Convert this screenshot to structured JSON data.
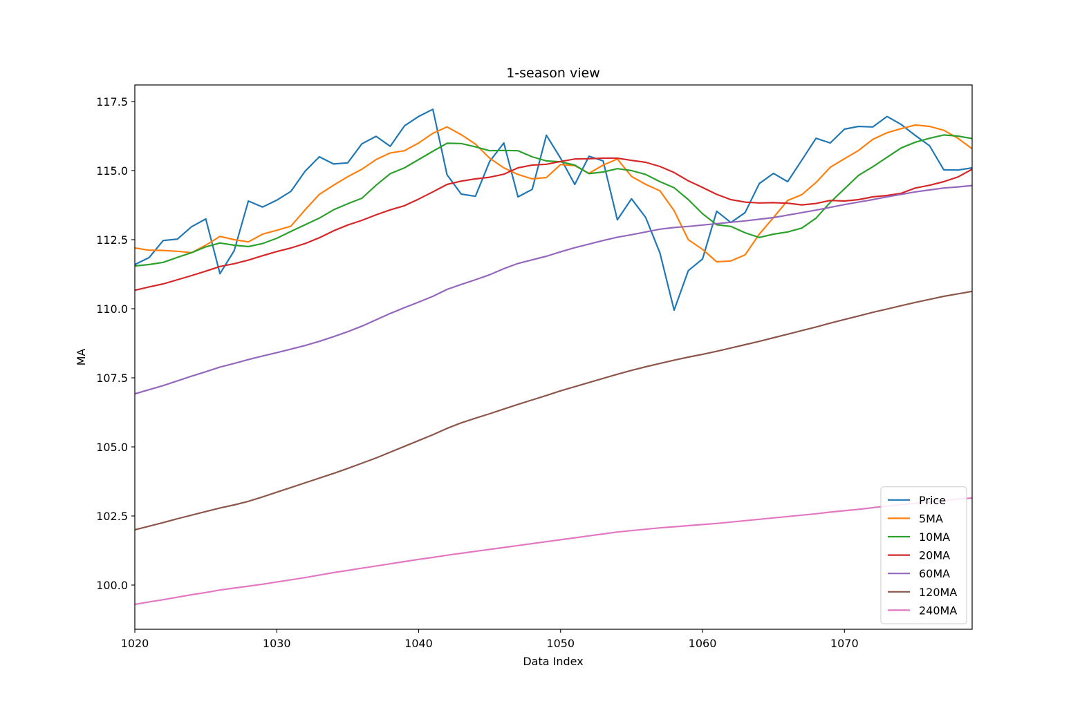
{
  "chart_data": {
    "type": "line",
    "title": "1-season view",
    "xlabel": "Data Index",
    "ylabel": "MA",
    "xlim": [
      1020,
      1079
    ],
    "ylim": [
      98.4,
      118.1
    ],
    "xticks": [
      1020,
      1030,
      1040,
      1050,
      1060,
      1070
    ],
    "yticks": [
      100.0,
      102.5,
      105.0,
      107.5,
      110.0,
      112.5,
      115.0,
      117.5
    ],
    "ytick_labels": [
      "100.0",
      "102.5",
      "105.0",
      "107.5",
      "110.0",
      "112.5",
      "115.0",
      "117.5"
    ],
    "legend_position": "lower-right",
    "grid": false,
    "x": [
      1020,
      1021,
      1022,
      1023,
      1024,
      1025,
      1026,
      1027,
      1028,
      1029,
      1030,
      1031,
      1032,
      1033,
      1034,
      1035,
      1036,
      1037,
      1038,
      1039,
      1040,
      1041,
      1042,
      1043,
      1044,
      1045,
      1046,
      1047,
      1048,
      1049,
      1050,
      1051,
      1052,
      1053,
      1054,
      1055,
      1056,
      1057,
      1058,
      1059,
      1060,
      1061,
      1062,
      1063,
      1064,
      1065,
      1066,
      1067,
      1068,
      1069,
      1070,
      1071,
      1072,
      1073,
      1074,
      1075,
      1076,
      1077,
      1078,
      1079
    ],
    "series": [
      {
        "name": "Price",
        "color": "#1f77b4",
        "values": [
          111.6,
          111.85,
          112.47,
          112.52,
          112.97,
          113.25,
          111.27,
          112.1,
          113.9,
          113.68,
          113.93,
          114.25,
          114.98,
          115.5,
          115.24,
          115.28,
          115.97,
          116.24,
          115.88,
          116.62,
          116.96,
          117.22,
          114.85,
          114.15,
          114.07,
          115.33,
          116.0,
          114.05,
          114.32,
          116.28,
          115.45,
          114.5,
          115.52,
          115.35,
          113.22,
          113.98,
          113.3,
          112.02,
          109.95,
          111.38,
          111.8,
          113.53,
          113.12,
          113.48,
          114.53,
          114.9,
          114.6,
          115.38,
          116.17,
          116.0,
          116.5,
          116.6,
          116.58,
          116.96,
          116.67,
          116.27,
          115.9,
          115.03,
          115.02,
          115.1
        ]
      },
      {
        "name": "5MA",
        "color": "#ff7f0e",
        "values": [
          112.2,
          112.12,
          112.11,
          112.08,
          112.03,
          112.3,
          112.62,
          112.5,
          112.42,
          112.7,
          112.84,
          112.99,
          113.58,
          114.14,
          114.47,
          114.78,
          115.05,
          115.4,
          115.64,
          115.72,
          116.0,
          116.35,
          116.58,
          116.3,
          115.96,
          115.45,
          115.1,
          114.86,
          114.7,
          114.75,
          115.22,
          115.18,
          114.9,
          115.2,
          115.42,
          114.79,
          114.5,
          114.27,
          113.55,
          112.5,
          112.15,
          111.7,
          111.73,
          111.95,
          112.7,
          113.3,
          113.92,
          114.13,
          114.57,
          115.12,
          115.43,
          115.73,
          116.13,
          116.37,
          116.52,
          116.65,
          116.6,
          116.46,
          116.17,
          115.79
        ]
      },
      {
        "name": "10MA",
        "color": "#2ca02c",
        "values": [
          111.55,
          111.6,
          111.68,
          111.86,
          112.03,
          112.24,
          112.38,
          112.3,
          112.25,
          112.36,
          112.55,
          112.8,
          113.04,
          113.28,
          113.58,
          113.8,
          114.0,
          114.47,
          114.89,
          115.1,
          115.4,
          115.7,
          115.99,
          115.98,
          115.86,
          115.72,
          115.73,
          115.72,
          115.5,
          115.35,
          115.32,
          115.2,
          114.89,
          114.95,
          115.07,
          115.0,
          114.86,
          114.6,
          114.38,
          113.95,
          113.44,
          113.04,
          112.98,
          112.75,
          112.58,
          112.7,
          112.78,
          112.92,
          113.28,
          113.85,
          114.34,
          114.83,
          115.14,
          115.48,
          115.82,
          116.03,
          116.17,
          116.29,
          116.25,
          116.16
        ]
      },
      {
        "name": "20MA",
        "color": "#d62728",
        "values": [
          110.67,
          110.79,
          110.9,
          111.05,
          111.2,
          111.36,
          111.53,
          111.63,
          111.76,
          111.92,
          112.07,
          112.2,
          112.36,
          112.57,
          112.82,
          113.03,
          113.2,
          113.4,
          113.58,
          113.73,
          113.97,
          114.23,
          114.5,
          114.62,
          114.7,
          114.76,
          114.87,
          115.1,
          115.2,
          115.23,
          115.33,
          115.42,
          115.43,
          115.45,
          115.45,
          115.37,
          115.3,
          115.15,
          114.93,
          114.63,
          114.39,
          114.14,
          113.95,
          113.86,
          113.83,
          113.84,
          113.82,
          113.76,
          113.81,
          113.92,
          113.9,
          113.95,
          114.05,
          114.1,
          114.18,
          114.37,
          114.47,
          114.6,
          114.77,
          115.05
        ]
      },
      {
        "name": "60MA",
        "color": "#9467bd",
        "values": [
          106.92,
          107.07,
          107.22,
          107.39,
          107.56,
          107.72,
          107.89,
          108.02,
          108.16,
          108.29,
          108.41,
          108.54,
          108.67,
          108.82,
          108.99,
          109.17,
          109.37,
          109.6,
          109.83,
          110.04,
          110.24,
          110.45,
          110.7,
          110.88,
          111.05,
          111.23,
          111.45,
          111.64,
          111.77,
          111.9,
          112.06,
          112.21,
          112.34,
          112.47,
          112.59,
          112.68,
          112.78,
          112.88,
          112.94,
          112.98,
          113.03,
          113.08,
          113.13,
          113.18,
          113.24,
          113.3,
          113.39,
          113.48,
          113.57,
          113.67,
          113.77,
          113.86,
          113.95,
          114.05,
          114.14,
          114.23,
          114.3,
          114.37,
          114.41,
          114.46
        ]
      },
      {
        "name": "120MA",
        "color": "#8c564b",
        "values": [
          102.0,
          102.13,
          102.26,
          102.4,
          102.53,
          102.66,
          102.79,
          102.9,
          103.03,
          103.19,
          103.36,
          103.53,
          103.7,
          103.87,
          104.04,
          104.22,
          104.41,
          104.6,
          104.81,
          105.02,
          105.23,
          105.44,
          105.67,
          105.87,
          106.04,
          106.2,
          106.37,
          106.54,
          106.7,
          106.86,
          107.03,
          107.18,
          107.33,
          107.48,
          107.63,
          107.77,
          107.9,
          108.02,
          108.14,
          108.25,
          108.35,
          108.46,
          108.58,
          108.7,
          108.82,
          108.95,
          109.08,
          109.21,
          109.34,
          109.48,
          109.61,
          109.74,
          109.87,
          109.99,
          110.11,
          110.23,
          110.34,
          110.45,
          110.54,
          110.63
        ]
      },
      {
        "name": "240MA",
        "color": "#e377c2",
        "values": [
          99.3,
          99.39,
          99.47,
          99.56,
          99.65,
          99.73,
          99.82,
          99.89,
          99.96,
          100.03,
          100.11,
          100.19,
          100.27,
          100.36,
          100.45,
          100.53,
          100.61,
          100.69,
          100.77,
          100.85,
          100.93,
          101.0,
          101.08,
          101.15,
          101.22,
          101.29,
          101.36,
          101.43,
          101.5,
          101.57,
          101.64,
          101.71,
          101.78,
          101.85,
          101.92,
          101.97,
          102.02,
          102.07,
          102.11,
          102.15,
          102.19,
          102.23,
          102.28,
          102.33,
          102.38,
          102.43,
          102.48,
          102.53,
          102.58,
          102.64,
          102.69,
          102.74,
          102.8,
          102.86,
          102.91,
          102.96,
          103.01,
          103.06,
          103.11,
          103.15
        ]
      }
    ]
  }
}
